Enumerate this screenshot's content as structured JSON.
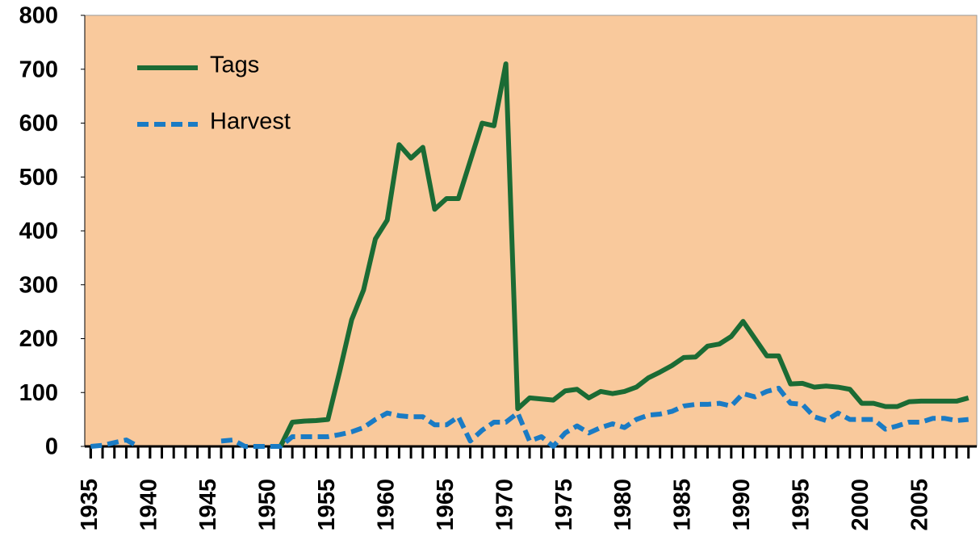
{
  "chart_data": {
    "type": "line",
    "x": [
      1935,
      1936,
      1937,
      1938,
      1939,
      1940,
      1941,
      1942,
      1943,
      1944,
      1945,
      1946,
      1947,
      1948,
      1949,
      1950,
      1951,
      1952,
      1953,
      1954,
      1955,
      1956,
      1957,
      1958,
      1959,
      1960,
      1961,
      1962,
      1963,
      1964,
      1965,
      1966,
      1967,
      1968,
      1969,
      1970,
      1971,
      1972,
      1973,
      1974,
      1975,
      1976,
      1977,
      1978,
      1979,
      1980,
      1981,
      1982,
      1983,
      1984,
      1985,
      1986,
      1987,
      1988,
      1989,
      1990,
      1991,
      1992,
      1993,
      1994,
      1995,
      1996,
      1997,
      1998,
      1999,
      2000,
      2001,
      2002,
      2003,
      2004,
      2005,
      2006,
      2007,
      2008,
      2009
    ],
    "series": [
      {
        "name": "Tags",
        "color": "#1b6b34",
        "dashed": false,
        "values": [
          null,
          null,
          null,
          null,
          null,
          null,
          null,
          null,
          null,
          null,
          null,
          null,
          null,
          null,
          null,
          null,
          0,
          45,
          47,
          48,
          50,
          140,
          235,
          290,
          385,
          420,
          560,
          535,
          555,
          440,
          460,
          460,
          530,
          600,
          595,
          710,
          70,
          90,
          88,
          86,
          103,
          106,
          90,
          102,
          98,
          102,
          110,
          127,
          138,
          150,
          165,
          166,
          186,
          190,
          204,
          232,
          200,
          168,
          168,
          116,
          117,
          110,
          112,
          110,
          106,
          80,
          80,
          74,
          74,
          83,
          84,
          84,
          84,
          84,
          90
        ]
      },
      {
        "name": "Harvest",
        "color": "#1a7bc4",
        "dashed": true,
        "values": [
          0,
          2,
          7,
          12,
          0,
          null,
          null,
          null,
          null,
          null,
          null,
          10,
          12,
          0,
          0,
          0,
          0,
          18,
          18,
          18,
          18,
          22,
          27,
          35,
          50,
          62,
          57,
          55,
          55,
          40,
          40,
          55,
          10,
          30,
          45,
          45,
          62,
          10,
          18,
          0,
          25,
          38,
          25,
          35,
          42,
          35,
          50,
          58,
          60,
          65,
          75,
          78,
          78,
          80,
          75,
          98,
          92,
          102,
          108,
          80,
          78,
          55,
          48,
          62,
          50,
          50,
          50,
          32,
          38,
          45,
          45,
          52,
          52,
          48,
          50
        ]
      }
    ],
    "xlim": [
      1934.5,
      2009.7
    ],
    "ylim": [
      0,
      800
    ],
    "yticks": [
      0,
      100,
      200,
      300,
      400,
      500,
      600,
      700,
      800
    ],
    "xticks": [
      1935,
      1940,
      1945,
      1950,
      1955,
      1960,
      1965,
      1970,
      1975,
      1980,
      1985,
      1990,
      1995,
      2000,
      2005
    ],
    "xminor_ticks": [
      1935,
      1936,
      1937,
      1938,
      1939,
      1940,
      1941,
      1942,
      1943,
      1944,
      1945,
      1946,
      1947,
      1948,
      1949,
      1950,
      1951,
      1952,
      1953,
      1954,
      1955,
      1956,
      1957,
      1958,
      1959,
      1960,
      1961,
      1962,
      1963,
      1964,
      1965,
      1966,
      1967,
      1968,
      1969,
      1970,
      1971,
      1972,
      1973,
      1974,
      1975,
      1976,
      1977,
      1978,
      1979,
      1980,
      1981,
      1982,
      1983,
      1984,
      1985,
      1986,
      1987,
      1988,
      1989,
      1990,
      1991,
      1992,
      1993,
      1994,
      1995,
      1996,
      1997,
      1998,
      1999,
      2000,
      2001,
      2002,
      2003,
      2004,
      2005,
      2006,
      2007,
      2008,
      2009
    ],
    "plot_background": "#f9c99c",
    "legend": "upper left"
  }
}
